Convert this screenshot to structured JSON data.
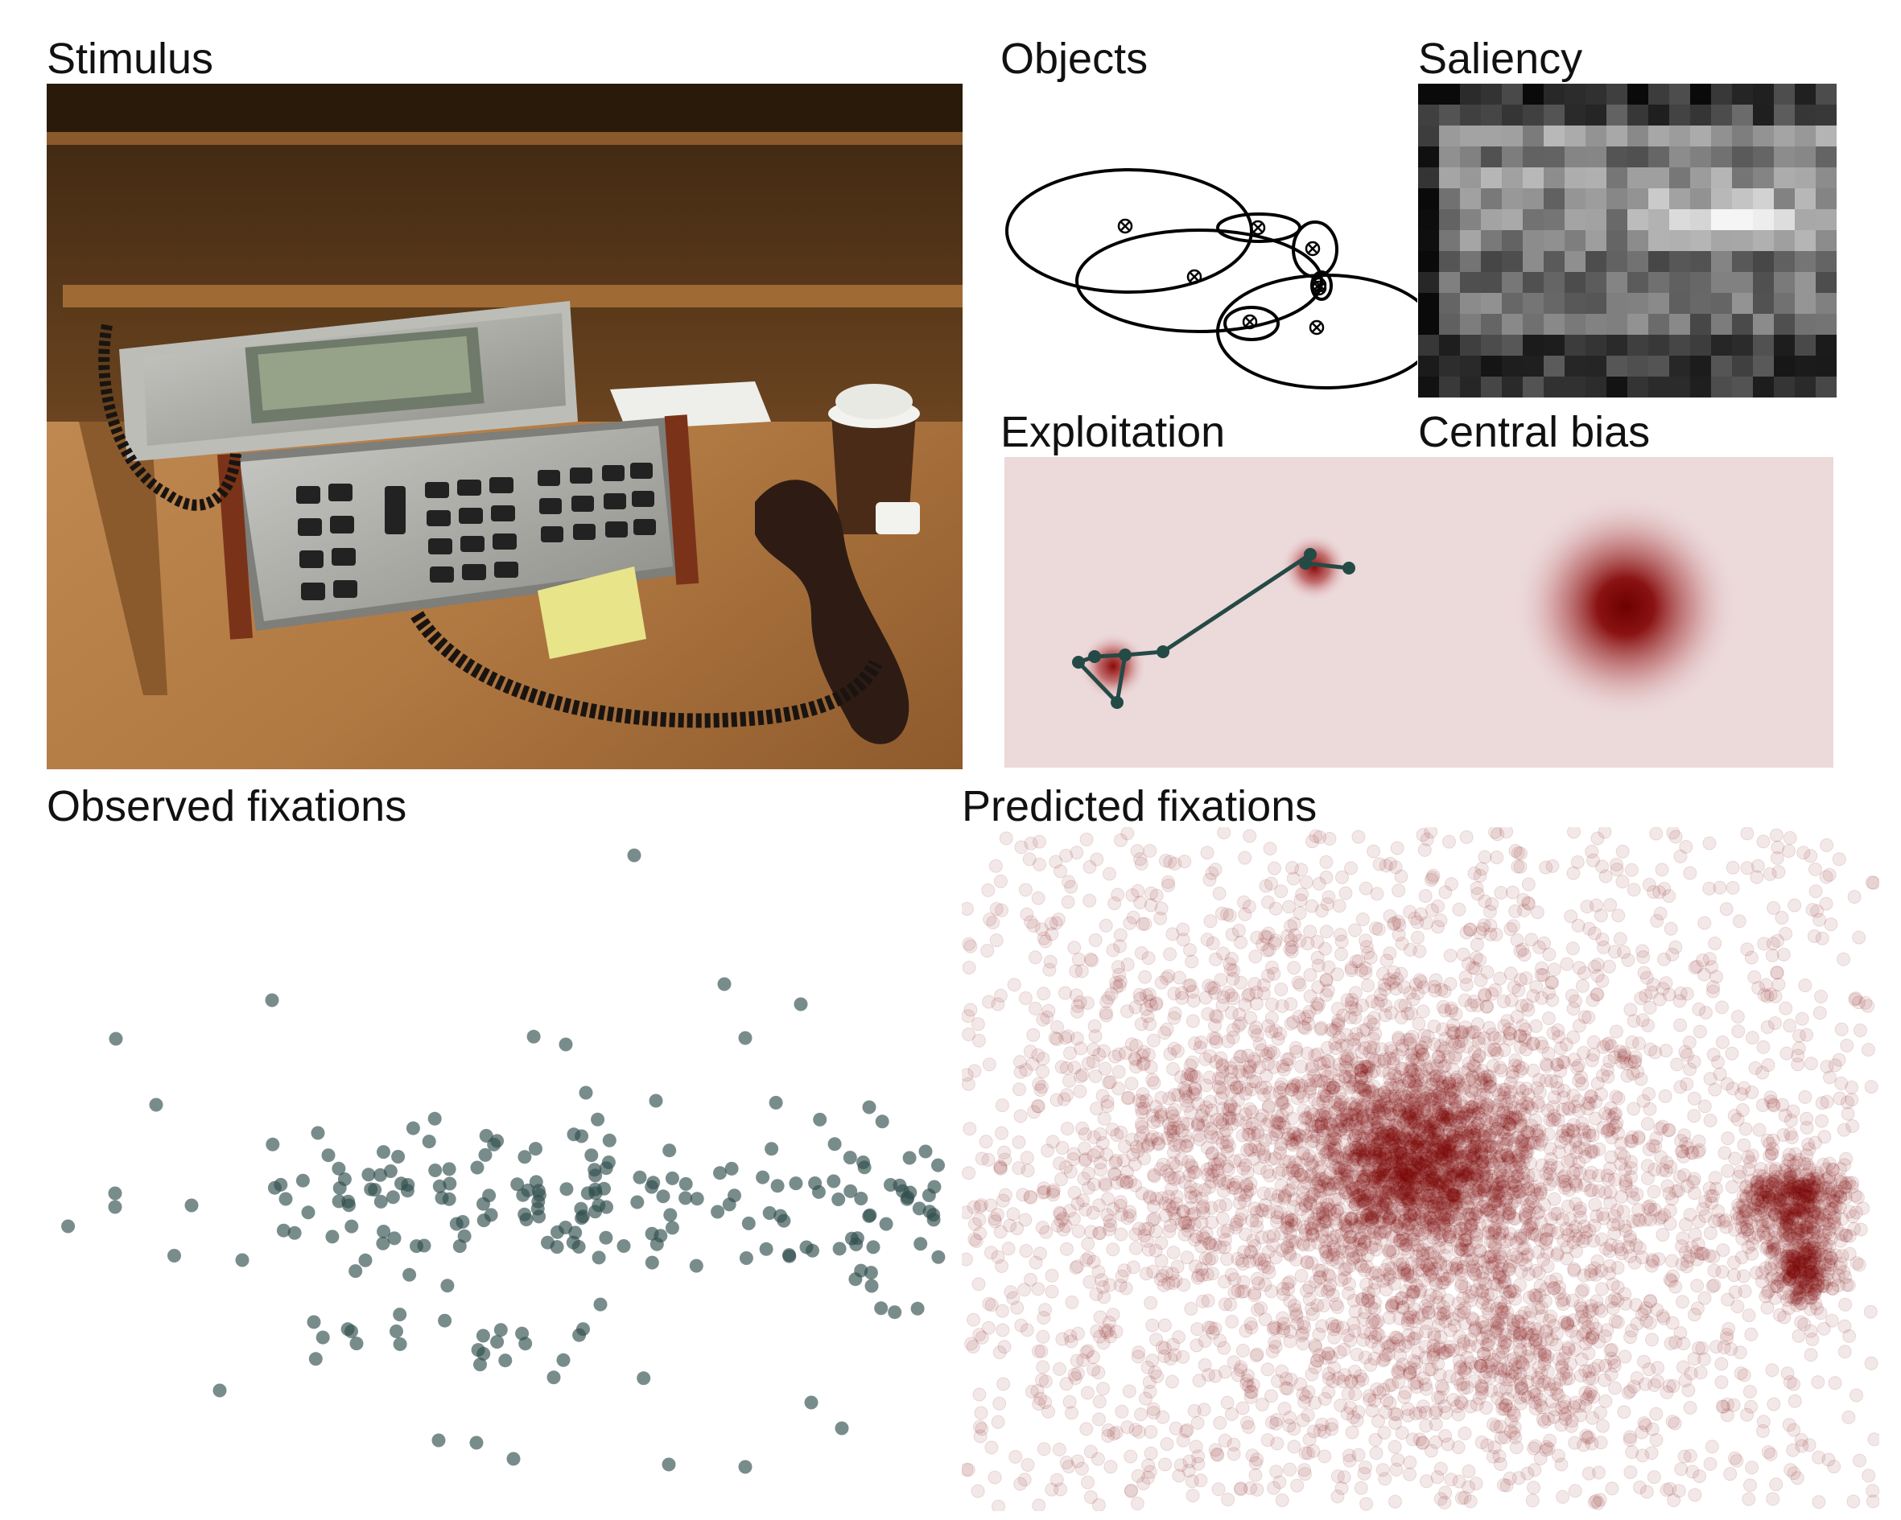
{
  "panels": {
    "stimulus": {
      "title": "Stimulus"
    },
    "objects": {
      "title": "Objects"
    },
    "saliency": {
      "title": "Saliency"
    },
    "exploitation": {
      "title": "Exploitation"
    },
    "central_bias": {
      "title": "Central bias"
    },
    "observed": {
      "title": "Observed fixations"
    },
    "predicted": {
      "title": "Predicted fixations"
    }
  },
  "colors": {
    "fixation_dark_teal": "#2f4f4d",
    "prediction_dark_red": "#7a0000",
    "background_pink": "#ecd9da",
    "saliency_dark": "#1a1a1a",
    "wood_desk": "#b8854f"
  },
  "icons": {
    "object_center_marker": "circled-x"
  }
}
